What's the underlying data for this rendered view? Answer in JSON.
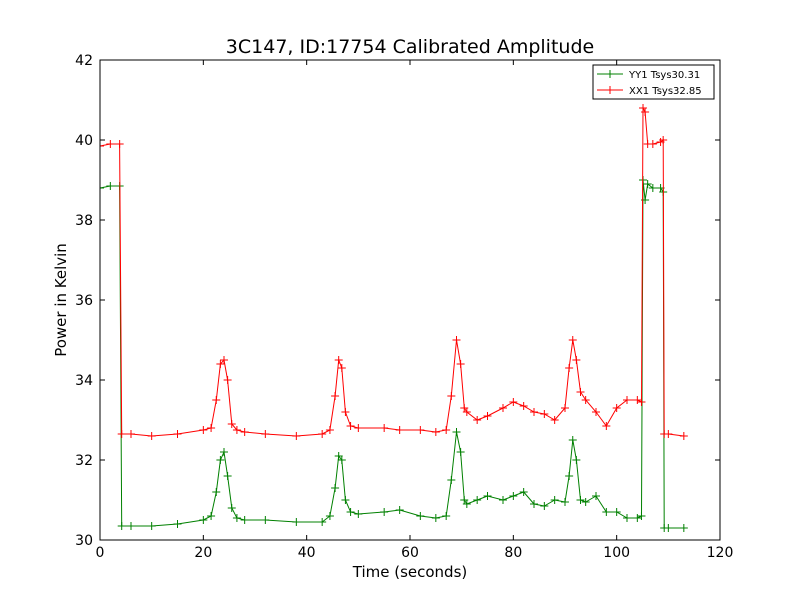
{
  "chart_data": {
    "type": "line",
    "title": "3C147, ID:17754 Calibrated Amplitude",
    "xlabel": "Time (seconds)",
    "ylabel": "Power in Kelvin",
    "xlim": [
      0,
      120
    ],
    "ylim": [
      30,
      42
    ],
    "xticks": [
      "0",
      "20",
      "40",
      "60",
      "80",
      "100",
      "120"
    ],
    "yticks": [
      "30",
      "32",
      "34",
      "36",
      "38",
      "40",
      "42"
    ],
    "grid": false,
    "legend_position": "top-right",
    "markers": "+",
    "series": [
      {
        "name": "YY1 Tsys30.31",
        "color": "#008000",
        "x": [
          0,
          2,
          3.8,
          4.2,
          6,
          10,
          15,
          20,
          21.5,
          22.5,
          23.3,
          24,
          24.7,
          25.5,
          26.5,
          28,
          32,
          38,
          43,
          44.5,
          45.5,
          46.2,
          46.8,
          47.5,
          48.5,
          50,
          55,
          58,
          62,
          65,
          67,
          68,
          69,
          69.8,
          70.5,
          71,
          73,
          75,
          78,
          80,
          82,
          84,
          86,
          88,
          90,
          90.8,
          91.5,
          92.2,
          93,
          94,
          96,
          98,
          100,
          102,
          104,
          104.8,
          105.1,
          105.5,
          106,
          107,
          108.5,
          109,
          109.2,
          110,
          113
        ],
        "y": [
          38.8,
          38.85,
          38.85,
          30.35,
          30.35,
          30.35,
          30.4,
          30.5,
          30.6,
          31.2,
          32.0,
          32.2,
          31.6,
          30.8,
          30.55,
          30.5,
          30.5,
          30.45,
          30.45,
          30.6,
          31.3,
          32.1,
          32.0,
          31.0,
          30.7,
          30.65,
          30.7,
          30.75,
          30.6,
          30.55,
          30.6,
          31.5,
          32.7,
          32.2,
          31.0,
          30.9,
          31.0,
          31.1,
          31.0,
          31.1,
          31.2,
          30.9,
          30.85,
          31.0,
          30.95,
          31.6,
          32.5,
          32.0,
          31.0,
          30.95,
          31.1,
          30.7,
          30.7,
          30.55,
          30.55,
          30.6,
          39.0,
          38.5,
          38.9,
          38.8,
          38.8,
          38.7,
          30.3,
          30.3,
          30.3
        ]
      },
      {
        "name": "XX1 Tsys32.85",
        "color": "#ff0000",
        "x": [
          0,
          2,
          3.8,
          4.2,
          6,
          10,
          15,
          20,
          21.5,
          22.5,
          23.3,
          24,
          24.7,
          25.5,
          26.5,
          28,
          32,
          38,
          43,
          44.5,
          45.5,
          46.2,
          46.8,
          47.5,
          48.5,
          50,
          55,
          58,
          62,
          65,
          67,
          68,
          69,
          69.8,
          70.5,
          71,
          73,
          75,
          78,
          80,
          82,
          84,
          86,
          88,
          90,
          90.8,
          91.5,
          92.2,
          93,
          94,
          96,
          98,
          100,
          102,
          104,
          104.8,
          105.1,
          105.5,
          106,
          107,
          108.5,
          109,
          109.2,
          110,
          113
        ],
        "y": [
          39.85,
          39.9,
          39.9,
          32.65,
          32.65,
          32.6,
          32.65,
          32.75,
          32.8,
          33.5,
          34.4,
          34.5,
          34.0,
          32.9,
          32.75,
          32.7,
          32.65,
          32.6,
          32.65,
          32.75,
          33.6,
          34.5,
          34.3,
          33.2,
          32.85,
          32.8,
          32.8,
          32.75,
          32.75,
          32.7,
          32.75,
          33.6,
          35.0,
          34.4,
          33.3,
          33.2,
          33.0,
          33.1,
          33.3,
          33.45,
          33.35,
          33.2,
          33.15,
          33.0,
          33.3,
          34.3,
          35.0,
          34.5,
          33.7,
          33.5,
          33.2,
          32.85,
          33.3,
          33.5,
          33.5,
          33.45,
          40.8,
          40.7,
          39.9,
          39.9,
          39.95,
          40.0,
          32.65,
          32.65,
          32.6
        ]
      }
    ]
  }
}
